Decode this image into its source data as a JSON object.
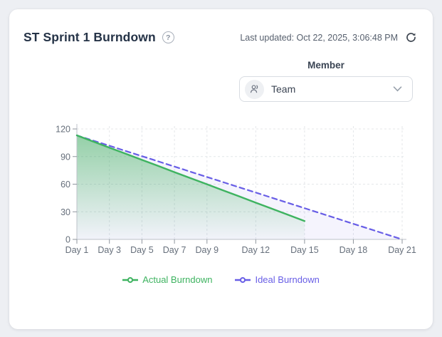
{
  "header": {
    "title": "ST Sprint 1 Burndown",
    "help_icon": "?",
    "last_updated": "Last updated: Oct 22, 2025, 3:06:48 PM"
  },
  "filter": {
    "label": "Member",
    "value": "Team"
  },
  "chart_data": {
    "type": "line",
    "title": "",
    "xlabel": "",
    "ylabel": "",
    "ylim": [
      0,
      120
    ],
    "y_ticks": [
      0,
      30,
      60,
      90,
      120
    ],
    "x_total_days": 21,
    "x_ticks": [
      {
        "day": 1,
        "label": "Day 1"
      },
      {
        "day": 3,
        "label": "Day 3"
      },
      {
        "day": 5,
        "label": "Day 5"
      },
      {
        "day": 7,
        "label": "Day 7"
      },
      {
        "day": 9,
        "label": "Day 9"
      },
      {
        "day": 12,
        "label": "Day 12"
      },
      {
        "day": 15,
        "label": "Day 15"
      },
      {
        "day": 18,
        "label": "Day 18"
      },
      {
        "day": 21,
        "label": "Day 21"
      }
    ],
    "grid": true,
    "legend_position": "bottom",
    "series": [
      {
        "name": "Actual Burndown",
        "color": "#3eb360",
        "line_style": "solid",
        "area_gradient_top": "rgba(69,178,97,0.55)",
        "area_gradient_bottom": "rgba(69,178,97,0.02)",
        "days": [
          1,
          2,
          3,
          4,
          5,
          6,
          7,
          8,
          9,
          10,
          11,
          12,
          13,
          14,
          15
        ],
        "values": [
          113,
          106.4,
          99.7,
          93.1,
          86.4,
          79.8,
          73.1,
          66.5,
          59.9,
          53.2,
          46.6,
          39.9,
          33.3,
          26.6,
          20
        ]
      },
      {
        "name": "Ideal Burndown",
        "color": "#685ee6",
        "line_style": "dashed",
        "area_fill": "rgba(108,99,232,0.07)",
        "days": [
          1,
          2,
          3,
          4,
          5,
          6,
          7,
          8,
          9,
          10,
          11,
          12,
          13,
          14,
          15,
          16,
          17,
          18,
          19,
          20,
          21
        ],
        "values": [
          113,
          107.35,
          101.7,
          96.05,
          90.4,
          84.75,
          79.1,
          73.45,
          67.8,
          62.15,
          56.5,
          50.85,
          45.2,
          39.55,
          33.9,
          28.25,
          22.6,
          16.95,
          11.3,
          5.65,
          0
        ]
      }
    ],
    "axis_colors": {
      "axis_line": "#bcc2c9",
      "tick": "#8f969e",
      "grid": "#e4e7ea",
      "label": "#666f7b"
    }
  }
}
